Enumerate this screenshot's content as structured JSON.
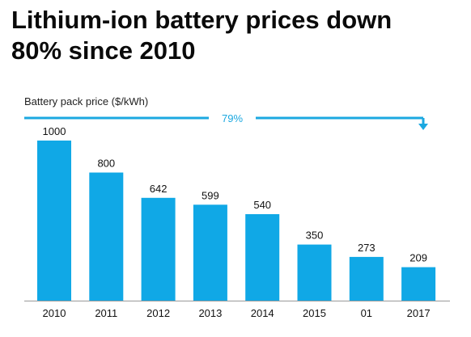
{
  "heading": {
    "line1": "Lithium-ion battery prices down",
    "line2": "80% since 2010"
  },
  "colors": {
    "bar": "#10a8e6",
    "arrow": "#1ba8e0",
    "axis": "#999999",
    "text": "#111111"
  },
  "chart_data": {
    "type": "bar",
    "title": "Lithium-ion battery prices down 80% since 2010",
    "ylabel": "Battery pack price ($/kWh)",
    "xlabel": "",
    "categories": [
      "2010",
      "2011",
      "2012",
      "2013",
      "2014",
      "2015",
      "01",
      "2017"
    ],
    "values": [
      1000,
      800,
      642,
      599,
      540,
      350,
      273,
      209
    ],
    "data_labels": [
      "1000",
      "800",
      "642",
      "599",
      "540",
      "350",
      "273",
      "209"
    ],
    "ylim": [
      0,
      1080
    ],
    "grid": false,
    "annotation": {
      "text": "79%",
      "from": "2010",
      "to": "2017"
    }
  }
}
